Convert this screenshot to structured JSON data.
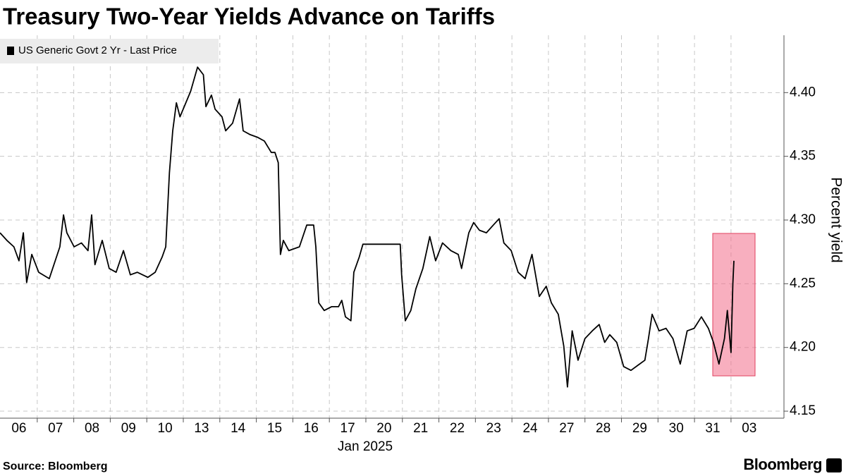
{
  "chart_data": {
    "type": "line",
    "title": "Treasury Two-Year Yields Advance on Tariffs",
    "xlabel": "Jan 2025",
    "ylabel": "Percent yield",
    "source": "Source: Bloomberg",
    "brand": "Bloomberg",
    "grid": true,
    "legend": "top-left",
    "xlim": [
      -0.52,
      20.95
    ],
    "ylim": [
      4.1445,
      4.445
    ],
    "xticks": [
      {
        "value": 0,
        "label": "06"
      },
      {
        "value": 1,
        "label": "07"
      },
      {
        "value": 2,
        "label": "08"
      },
      {
        "value": 3,
        "label": "09"
      },
      {
        "value": 4,
        "label": "10"
      },
      {
        "value": 5,
        "label": "13"
      },
      {
        "value": 6,
        "label": "14"
      },
      {
        "value": 7,
        "label": "15"
      },
      {
        "value": 8,
        "label": "16"
      },
      {
        "value": 9,
        "label": "17"
      },
      {
        "value": 10,
        "label": "20"
      },
      {
        "value": 11,
        "label": "21"
      },
      {
        "value": 12,
        "label": "22"
      },
      {
        "value": 13,
        "label": "23"
      },
      {
        "value": 14,
        "label": "24"
      },
      {
        "value": 15,
        "label": "27"
      },
      {
        "value": 16,
        "label": "28"
      },
      {
        "value": 17,
        "label": "29"
      },
      {
        "value": 18,
        "label": "30"
      },
      {
        "value": 19,
        "label": "31"
      },
      {
        "value": 20,
        "label": "03"
      }
    ],
    "yticks": [
      4.15,
      {
        "value": 4.2,
        "label": "4.20"
      },
      4.25,
      {
        "value": 4.3,
        "label": "4.30"
      },
      4.35,
      {
        "value": 4.4,
        "label": "4.40"
      }
    ],
    "x": [
      -0.52,
      -0.33,
      -0.14,
      0,
      0.12,
      0.21,
      0.35,
      0.54,
      0.83,
      1.12,
      1.22,
      1.31,
      1.51,
      1.71,
      1.89,
      1.99,
      2.08,
      2.28,
      2.47,
      2.66,
      2.86,
      3.05,
      3.24,
      3.53,
      3.73,
      3.92,
      4.02,
      4.12,
      4.21,
      4.31,
      4.41,
      4.7,
      4.89,
      5.05,
      5.12,
      5.27,
      5.37,
      5.56,
      5.66,
      5.85,
      6.04,
      6.14,
      6.33,
      6.53,
      6.72,
      6.91,
      7.01,
      7.1,
      7.16,
      7.24,
      7.39,
      7.68,
      7.88,
      8.07,
      8.13,
      8.21,
      8.36,
      8.56,
      8.75,
      8.84,
      8.94,
      9.09,
      9.17,
      9.32,
      9.42,
      10.44,
      10.48,
      10.58,
      10.73,
      10.87,
      11.06,
      11.25,
      11.41,
      11.6,
      11.83,
      12.03,
      12.12,
      12.32,
      12.45,
      12.61,
      12.8,
      12.99,
      13.15,
      13.28,
      13.48,
      13.67,
      13.86,
      14.05,
      14.25,
      14.44,
      14.58,
      14.77,
      14.92,
      15.02,
      15.15,
      15.31,
      15.5,
      15.7,
      15.89,
      16.04,
      16.18,
      16.37,
      16.56,
      16.76,
      16.95,
      17.14,
      17.24,
      17.34,
      17.53,
      17.72,
      17.91,
      18.11,
      18.3,
      18.49,
      18.69,
      18.88,
      19.02,
      19.17,
      19.32,
      19.4,
      19.5,
      19.55,
      19.58
    ],
    "series": [
      {
        "name": "US Generic Govt 2 Yr - Last Price",
        "color": "#000000",
        "values": [
          4.29,
          4.284,
          4.279,
          4.268,
          4.29,
          4.251,
          4.273,
          4.259,
          4.254,
          4.279,
          4.304,
          4.29,
          4.279,
          4.282,
          4.276,
          4.304,
          4.265,
          4.284,
          4.262,
          4.259,
          4.276,
          4.257,
          4.259,
          4.255,
          4.259,
          4.271,
          4.279,
          4.337,
          4.37,
          4.392,
          4.381,
          4.401,
          4.42,
          4.414,
          4.389,
          4.398,
          4.387,
          4.381,
          4.37,
          4.376,
          4.395,
          4.37,
          4.367,
          4.365,
          4.362,
          4.353,
          4.353,
          4.345,
          4.273,
          4.284,
          4.276,
          4.279,
          4.296,
          4.296,
          4.279,
          4.235,
          4.229,
          4.232,
          4.232,
          4.237,
          4.224,
          4.221,
          4.259,
          4.271,
          4.281,
          4.281,
          4.257,
          4.221,
          4.229,
          4.246,
          4.262,
          4.287,
          4.268,
          4.282,
          4.276,
          4.273,
          4.262,
          4.29,
          4.298,
          4.292,
          4.29,
          4.296,
          4.301,
          4.282,
          4.276,
          4.259,
          4.254,
          4.273,
          4.24,
          4.248,
          4.235,
          4.226,
          4.201,
          4.169,
          4.213,
          4.19,
          4.207,
          4.213,
          4.218,
          4.204,
          4.21,
          4.204,
          4.185,
          4.182,
          4.186,
          4.19,
          4.207,
          4.226,
          4.213,
          4.215,
          4.207,
          4.187,
          4.213,
          4.215,
          4.224,
          4.215,
          4.204,
          4.187,
          4.207,
          4.229,
          4.196,
          4.25,
          4.268
        ]
      }
    ]
  }
}
